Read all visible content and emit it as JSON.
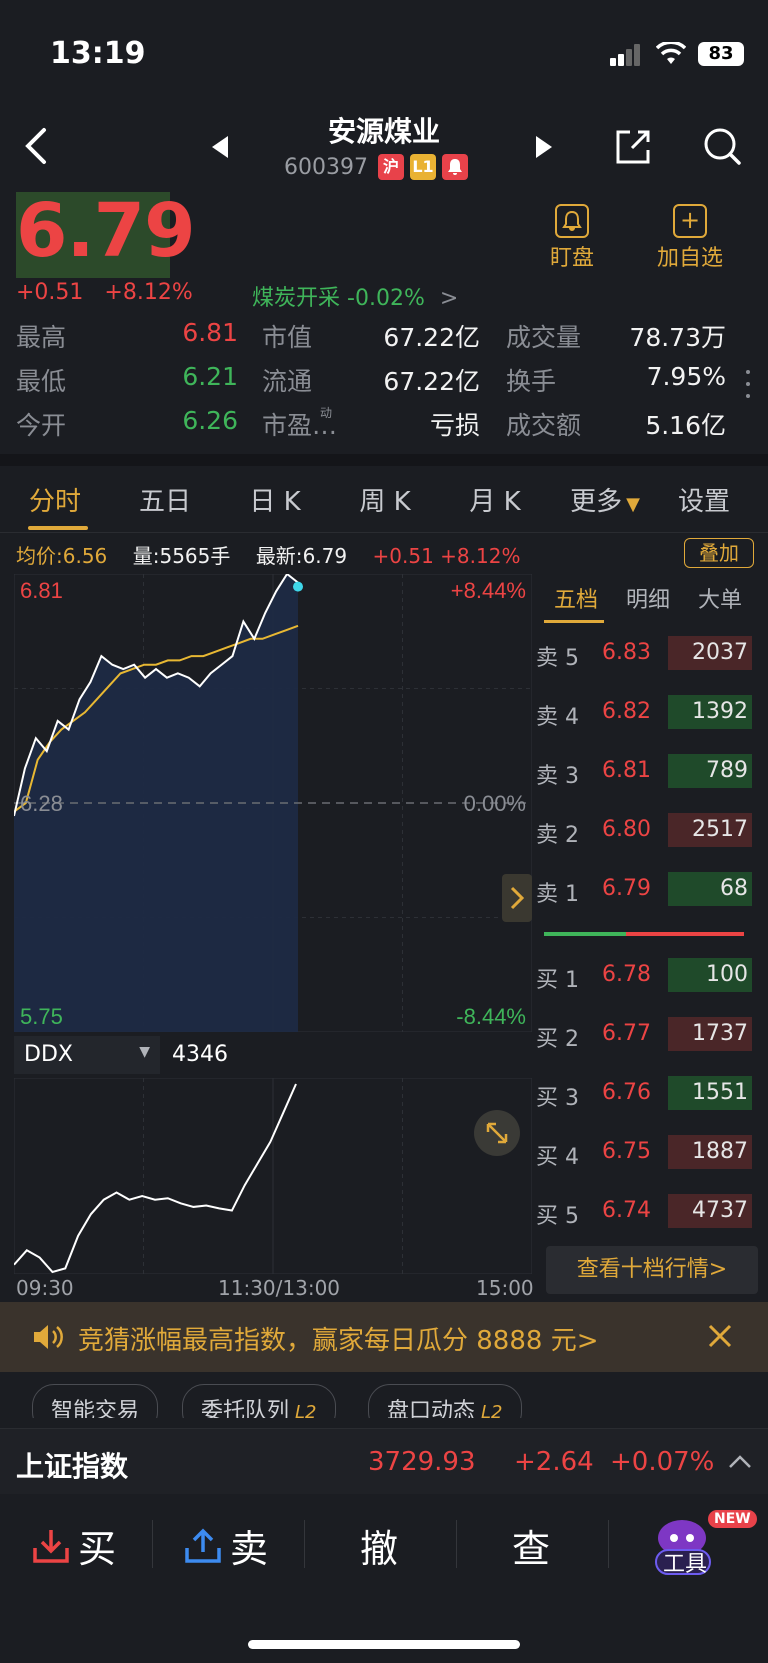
{
  "status_bar": {
    "time": "13:19",
    "battery": "83"
  },
  "header": {
    "title": "安源煤业",
    "code": "600397",
    "tags": [
      {
        "label": "沪",
        "color": "#e8424a"
      },
      {
        "label": "L1",
        "color": "#e9b233"
      },
      {
        "label": "🔔",
        "color": "#e8424a"
      }
    ]
  },
  "quote": {
    "price": "6.79",
    "change": "+0.51",
    "change_pct": "+8.12%",
    "sector": "煤炭开采",
    "sector_pct": "-0.02%",
    "watch_label": "盯盘",
    "fav_label": "加自选"
  },
  "stats": [
    {
      "label": "最高",
      "value": "6.81",
      "color": "red"
    },
    {
      "label": "市值",
      "value": "67.22亿",
      "color": "white"
    },
    {
      "label": "成交量",
      "value": "78.73万",
      "color": "white"
    },
    {
      "label": "最低",
      "value": "6.21",
      "color": "green"
    },
    {
      "label": "流通",
      "value": "67.22亿",
      "color": "white"
    },
    {
      "label": "换手",
      "value": "7.95%",
      "color": "white"
    },
    {
      "label": "今开",
      "value": "6.26",
      "color": "green"
    },
    {
      "label": "市盈…",
      "value": "亏损",
      "color": "white"
    },
    {
      "label": "成交额",
      "value": "5.16亿",
      "color": "white"
    }
  ],
  "pe_sup": "动",
  "tabs": [
    "分时",
    "五日",
    "日 K",
    "周 K",
    "月 K",
    "更多",
    "设置"
  ],
  "info_bar": {
    "avg_label": "均价:",
    "avg": "6.56",
    "vol_label": "量:",
    "vol": "5565手",
    "last_label": "最新:",
    "last": "6.79",
    "change": "+0.51 +8.12%",
    "overlay_label": "叠加"
  },
  "chart_data": {
    "type": "line",
    "title": "",
    "y_left_ticks": [
      "6.81",
      "6.28",
      "5.75"
    ],
    "y_right_ticks": [
      "+8.44%",
      "0.00%",
      "-8.44%"
    ],
    "ylim": [
      5.75,
      6.81
    ],
    "x_ticks": [
      "09:30",
      "11:30/13:00",
      "15:00"
    ],
    "series": [
      {
        "values": [
          6.26,
          6.28,
          6.38,
          6.42,
          6.45,
          6.47,
          6.49,
          6.52,
          6.55,
          6.58,
          6.59,
          6.6,
          6.6,
          6.61,
          6.61,
          6.62,
          6.62,
          6.63,
          6.64,
          6.65,
          6.66,
          6.66,
          6.67,
          6.68,
          6.69
        ],
        "color": "#e8b833"
      },
      {
        "values": [
          6.25,
          6.36,
          6.43,
          6.4,
          6.47,
          6.45,
          6.52,
          6.56,
          6.62,
          6.6,
          6.59,
          6.6,
          6.57,
          6.59,
          6.57,
          6.58,
          6.57,
          6.55,
          6.58,
          6.6,
          6.62,
          6.7,
          6.66,
          6.72,
          6.77,
          6.81,
          6.79
        ],
        "color": "#ffffff"
      }
    ]
  },
  "ddx": {
    "label": "DDX",
    "value": "4346",
    "values": [
      10,
      30,
      20,
      0,
      5,
      50,
      80,
      100,
      110,
      100,
      105,
      100,
      102,
      95,
      90,
      92,
      88,
      85,
      120,
      150,
      180,
      220,
      260
    ]
  },
  "order_book": {
    "tabs": [
      "五档",
      "明细",
      "大单"
    ],
    "sells": [
      {
        "label": "卖 5",
        "price": "6.83",
        "vol": "2037",
        "bg": "#4a2628"
      },
      {
        "label": "卖 4",
        "price": "6.82",
        "vol": "1392",
        "bg": "#1f4a2a"
      },
      {
        "label": "卖 3",
        "price": "6.81",
        "vol": "789",
        "bg": "#1f4a2a"
      },
      {
        "label": "卖 2",
        "price": "6.80",
        "vol": "2517",
        "bg": "#4a2628"
      },
      {
        "label": "卖 1",
        "price": "6.79",
        "vol": "68",
        "bg": "#1f4a2a"
      }
    ],
    "buys": [
      {
        "label": "买 1",
        "price": "6.78",
        "vol": "100",
        "bg": "#1f4a2a"
      },
      {
        "label": "买 2",
        "price": "6.77",
        "vol": "1737",
        "bg": "#4a2628"
      },
      {
        "label": "买 3",
        "price": "6.76",
        "vol": "1551",
        "bg": "#1f4a2a"
      },
      {
        "label": "买 4",
        "price": "6.75",
        "vol": "1887",
        "bg": "#4a2628"
      },
      {
        "label": "买 5",
        "price": "6.74",
        "vol": "4737",
        "bg": "#4a2628"
      }
    ],
    "ten_level_label": "查看十档行情>"
  },
  "banner": {
    "text": "竞猜涨幅最高指数，赢家每日瓜分 8888 元>"
  },
  "chips": [
    {
      "label": "智能交易",
      "suffix": ""
    },
    {
      "label": "委托队列",
      "suffix": "L2"
    },
    {
      "label": "盘口动态",
      "suffix": "L2"
    }
  ],
  "index_bar": {
    "name": "上证指数",
    "value": "3729.93",
    "change": "+2.64",
    "pct": "+0.07%"
  },
  "actions": {
    "buy": "买",
    "sell": "卖",
    "cancel": "撤",
    "query": "查",
    "tools": "工具",
    "new_badge": "NEW"
  }
}
